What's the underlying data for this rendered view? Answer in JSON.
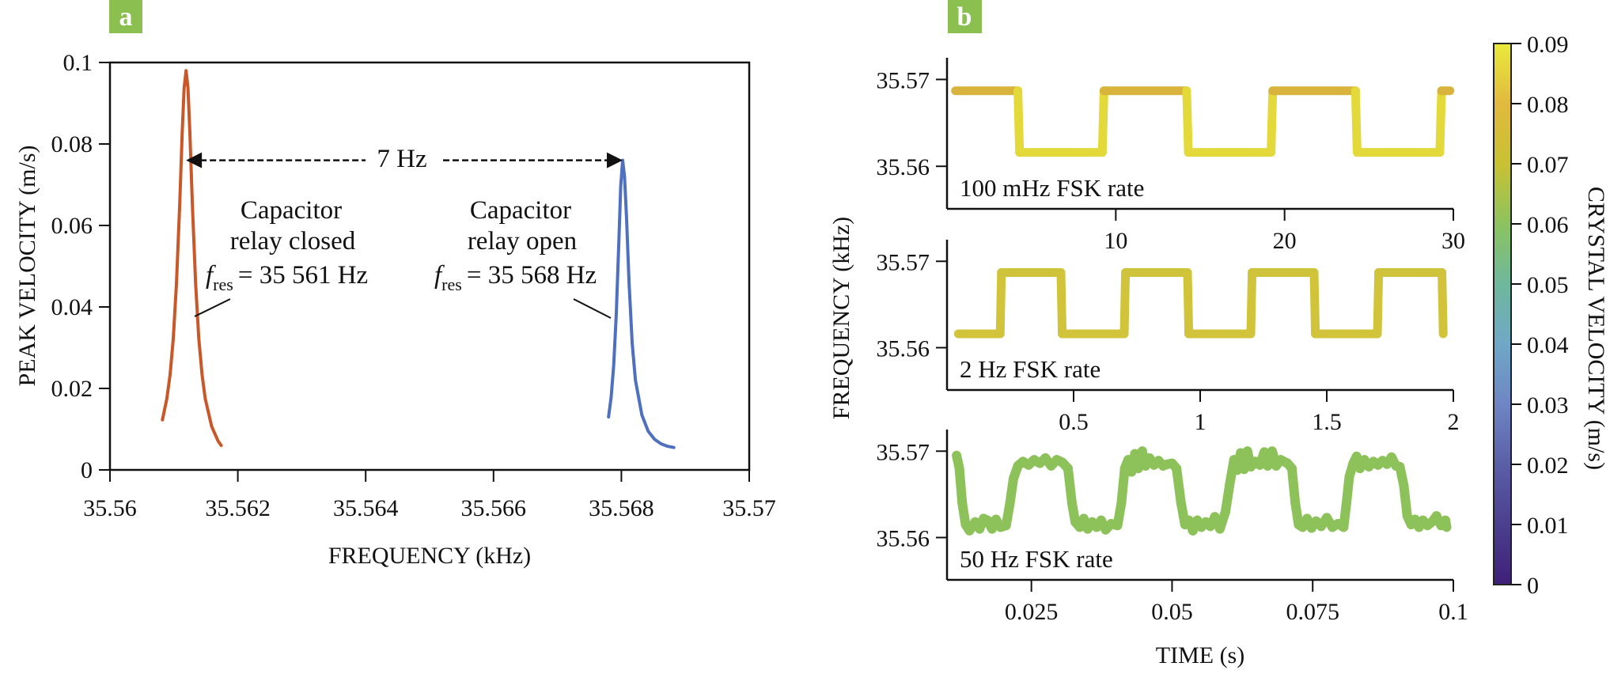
{
  "chart_data": [
    {
      "panel": "a",
      "type": "line",
      "title": "",
      "xlabel": "FREQUENCY (kHz)",
      "ylabel": "PEAK VELOCITY (m/s)",
      "xlim": [
        35.56,
        35.57
      ],
      "ylim": [
        0,
        0.1
      ],
      "grid": false,
      "xticks": [
        35.56,
        35.562,
        35.564,
        35.566,
        35.568,
        35.57
      ],
      "xtick_labels": [
        "35.56",
        "35.562",
        "35.564",
        "35.566",
        "35.568",
        "35.57"
      ],
      "yticks": [
        0,
        0.02,
        0.04,
        0.06,
        0.08,
        0.1
      ],
      "ytick_labels": [
        "0",
        "0.02",
        "0.04",
        "0.06",
        "0.08",
        "0.1"
      ],
      "series": [
        {
          "name": "Capacitor relay closed",
          "color": "#c8582a",
          "points": [
            [
              35.56082,
              0.0123
            ],
            [
              35.56089,
              0.0175
            ],
            [
              35.56094,
              0.0234
            ],
            [
              35.56099,
              0.0322
            ],
            [
              35.56104,
              0.0456
            ],
            [
              35.56109,
              0.0649
            ],
            [
              35.56113,
              0.0828
            ],
            [
              35.56116,
              0.0937
            ],
            [
              35.56119,
              0.098
            ],
            [
              35.56122,
              0.0937
            ],
            [
              35.56125,
              0.0828
            ],
            [
              35.56129,
              0.0649
            ],
            [
              35.56134,
              0.0456
            ],
            [
              35.56139,
              0.0322
            ],
            [
              35.56144,
              0.0234
            ],
            [
              35.56149,
              0.0175
            ],
            [
              35.56159,
              0.0107
            ],
            [
              35.56169,
              0.0071
            ],
            [
              35.56174,
              0.006
            ]
          ]
        },
        {
          "name": "Capacitor relay open",
          "color": "#4f6fbf",
          "points": [
            [
              35.5678,
              0.013
            ],
            [
              35.56784,
              0.0179
            ],
            [
              35.56788,
              0.0257
            ],
            [
              35.56792,
              0.038
            ],
            [
              35.56796,
              0.0559
            ],
            [
              35.56799,
              0.0697
            ],
            [
              35.56802,
              0.076
            ],
            [
              35.56805,
              0.072
            ],
            [
              35.56808,
              0.062
            ],
            [
              35.56812,
              0.046
            ],
            [
              35.56817,
              0.031
            ],
            [
              35.56822,
              0.022
            ],
            [
              35.56832,
              0.0135
            ],
            [
              35.56842,
              0.0095
            ],
            [
              35.56852,
              0.0075
            ],
            [
              35.56862,
              0.0064
            ],
            [
              35.56872,
              0.0058
            ],
            [
              35.56882,
              0.0055
            ]
          ]
        }
      ],
      "annotations": {
        "separation": {
          "label": "7 Hz",
          "from": 35.56119,
          "to": 35.56802,
          "y": 0.076
        },
        "closed": {
          "lines": [
            "Capacitor",
            "relay closed"
          ],
          "symbol": "f",
          "subscript": "res",
          "value": "= 35 561 Hz"
        },
        "open": {
          "lines": [
            "Capacitor",
            "relay open"
          ],
          "symbol": "f",
          "subscript": "res",
          "value": "= 35 568 Hz"
        }
      }
    },
    {
      "panel": "b",
      "type": "line",
      "xlabel": "TIME (s)",
      "ylabel": "FREQUENCY (kHz)",
      "subplots": [
        {
          "label": "100 mHz FSK rate",
          "xlim": [
            0,
            30
          ],
          "ylim": [
            35.5551,
            35.5725
          ],
          "xticks": [
            10,
            20,
            30
          ],
          "xtick_labels": [
            "10",
            "20",
            "30"
          ],
          "yticks": [
            35.56,
            35.57
          ],
          "ytick_labels": [
            "35.56",
            "35.57"
          ],
          "colors": {
            "high": "#d9b43d",
            "low": "#e3d93a"
          },
          "points": [
            [
              0.5,
              35.5687
            ],
            [
              4.2,
              35.5687
            ],
            [
              4.3,
              35.5616
            ],
            [
              9.2,
              35.5616
            ],
            [
              9.3,
              35.5687
            ],
            [
              14.2,
              35.5687
            ],
            [
              14.3,
              35.5616
            ],
            [
              19.2,
              35.5616
            ],
            [
              19.3,
              35.5687
            ],
            [
              24.2,
              35.5687
            ],
            [
              24.3,
              35.5616
            ],
            [
              29.2,
              35.5616
            ],
            [
              29.3,
              35.5687
            ],
            [
              29.8,
              35.5687
            ]
          ]
        },
        {
          "label": "2 Hz FSK rate",
          "xlim": [
            0,
            2
          ],
          "ylim": [
            35.5551,
            35.5725
          ],
          "xticks": [
            0.5,
            1,
            1.5,
            2
          ],
          "xtick_labels": [
            "0.5",
            "1",
            "1.5",
            "2"
          ],
          "yticks": [
            35.56,
            35.57
          ],
          "ytick_labels": [
            "35.56",
            "35.57"
          ],
          "colors": {
            "high": "#cec33a",
            "low": "#d1c43a"
          },
          "points": [
            [
              0.045,
              35.5616
            ],
            [
              0.21,
              35.5616
            ],
            [
              0.215,
              35.5687
            ],
            [
              0.45,
              35.5687
            ],
            [
              0.455,
              35.5616
            ],
            [
              0.7,
              35.5616
            ],
            [
              0.705,
              35.5687
            ],
            [
              0.95,
              35.5687
            ],
            [
              0.955,
              35.5616
            ],
            [
              1.2,
              35.5616
            ],
            [
              1.205,
              35.5687
            ],
            [
              1.45,
              35.5687
            ],
            [
              1.455,
              35.5616
            ],
            [
              1.7,
              35.5616
            ],
            [
              1.705,
              35.5687
            ],
            [
              1.955,
              35.5687
            ],
            [
              1.96,
              35.5616
            ]
          ]
        },
        {
          "label": "50 Hz FSK rate",
          "xlim": [
            0.01,
            0.1
          ],
          "ylim": [
            35.5551,
            35.5725
          ],
          "xticks": [
            0.025,
            0.05,
            0.075,
            0.1
          ],
          "xtick_labels": [
            "0.025",
            "0.05",
            "0.075",
            "0.1"
          ],
          "yticks": [
            35.56,
            35.57
          ],
          "ytick_labels": [
            "35.56",
            "35.57"
          ],
          "colors": {
            "high": "#8dc25a",
            "low": "#8dc25a"
          },
          "points": [
            [
              0.0117,
              35.5695
            ],
            [
              0.0122,
              35.568
            ],
            [
              0.0127,
              35.564
            ],
            [
              0.0133,
              35.5615
            ],
            [
              0.014,
              35.5608
            ],
            [
              0.015,
              35.5618
            ],
            [
              0.0158,
              35.561
            ],
            [
              0.0165,
              35.5622
            ],
            [
              0.0172,
              35.562
            ],
            [
              0.018,
              35.561
            ],
            [
              0.0187,
              35.5621
            ],
            [
              0.0195,
              35.5612
            ],
            [
              0.0205,
              35.5614
            ],
            [
              0.0212,
              35.564
            ],
            [
              0.0218,
              35.5668
            ],
            [
              0.0226,
              35.5683
            ],
            [
              0.0235,
              35.5688
            ],
            [
              0.0245,
              35.5684
            ],
            [
              0.0255,
              35.569
            ],
            [
              0.0265,
              35.5686
            ],
            [
              0.0275,
              35.5692
            ],
            [
              0.0285,
              35.5683
            ],
            [
              0.0295,
              35.569
            ],
            [
              0.0305,
              35.5687
            ],
            [
              0.0315,
              35.568
            ],
            [
              0.0322,
              35.564
            ],
            [
              0.0328,
              35.5618
            ],
            [
              0.0336,
              35.5612
            ],
            [
              0.0343,
              35.5622
            ],
            [
              0.035,
              35.561
            ],
            [
              0.0358,
              35.5618
            ],
            [
              0.0366,
              35.5612
            ],
            [
              0.0374,
              35.562
            ],
            [
              0.0382,
              35.5609
            ],
            [
              0.0392,
              35.5616
            ],
            [
              0.0403,
              35.5614
            ],
            [
              0.041,
              35.564
            ],
            [
              0.0416,
              35.568
            ],
            [
              0.0422,
              35.569
            ],
            [
              0.0428,
              35.5676
            ],
            [
              0.0434,
              35.5697
            ],
            [
              0.044,
              35.568
            ],
            [
              0.0447,
              35.57
            ],
            [
              0.0453,
              35.5683
            ],
            [
              0.046,
              35.5692
            ],
            [
              0.0468,
              35.5684
            ],
            [
              0.0476,
              35.5689
            ],
            [
              0.0484,
              35.5683
            ],
            [
              0.0492,
              35.5685
            ],
            [
              0.05,
              35.5686
            ],
            [
              0.0508,
              35.568
            ],
            [
              0.0516,
              35.564
            ],
            [
              0.0523,
              35.5615
            ],
            [
              0.053,
              35.562
            ],
            [
              0.0537,
              35.5608
            ],
            [
              0.0545,
              35.562
            ],
            [
              0.0552,
              35.5612
            ],
            [
              0.056,
              35.5618
            ],
            [
              0.0568,
              35.5613
            ],
            [
              0.0576,
              35.5624
            ],
            [
              0.0585,
              35.561
            ],
            [
              0.0595,
              35.563
            ],
            [
              0.0602,
              35.566
            ],
            [
              0.061,
              35.569
            ],
            [
              0.0616,
              35.5678
            ],
            [
              0.0622,
              35.5698
            ],
            [
              0.0628,
              35.5679
            ],
            [
              0.0634,
              35.57
            ],
            [
              0.064,
              35.5682
            ],
            [
              0.0648,
              35.5688
            ],
            [
              0.0656,
              35.5684
            ],
            [
              0.0664,
              35.5699
            ],
            [
              0.067,
              35.5683
            ],
            [
              0.0678,
              35.57
            ],
            [
              0.0685,
              35.5683
            ],
            [
              0.0693,
              35.569
            ],
            [
              0.0705,
              35.5686
            ],
            [
              0.0713,
              35.568
            ],
            [
              0.0719,
              35.564
            ],
            [
              0.0725,
              35.5615
            ],
            [
              0.0732,
              35.5612
            ],
            [
              0.074,
              35.5622
            ],
            [
              0.0748,
              35.5611
            ],
            [
              0.0756,
              35.5619
            ],
            [
              0.0765,
              35.5613
            ],
            [
              0.0775,
              35.5623
            ],
            [
              0.0785,
              35.5612
            ],
            [
              0.0795,
              35.5616
            ],
            [
              0.0805,
              35.5612
            ],
            [
              0.081,
              35.564
            ],
            [
              0.0815,
              35.567
            ],
            [
              0.0822,
              35.5686
            ],
            [
              0.0828,
              35.5694
            ],
            [
              0.0834,
              35.568
            ],
            [
              0.0842,
              35.569
            ],
            [
              0.085,
              35.5682
            ],
            [
              0.0858,
              35.5688
            ],
            [
              0.0866,
              35.5684
            ],
            [
              0.0874,
              35.5689
            ],
            [
              0.0882,
              35.5685
            ],
            [
              0.089,
              35.5693
            ],
            [
              0.0898,
              35.5683
            ],
            [
              0.0905,
              35.5682
            ],
            [
              0.0912,
              35.566
            ],
            [
              0.0918,
              35.5625
            ],
            [
              0.0925,
              35.5615
            ],
            [
              0.0932,
              35.5621
            ],
            [
              0.0939,
              35.5612
            ],
            [
              0.0946,
              35.562
            ],
            [
              0.0954,
              35.5614
            ],
            [
              0.0962,
              35.5618
            ],
            [
              0.097,
              35.5625
            ],
            [
              0.0978,
              35.5614
            ],
            [
              0.0986,
              35.562
            ],
            [
              0.0988,
              35.5612
            ]
          ]
        }
      ],
      "colorbar": {
        "label": "CRYSTAL VELOCITY (m/s)",
        "range": [
          0,
          0.09
        ],
        "ticks": [
          0,
          0.01,
          0.02,
          0.03,
          0.04,
          0.05,
          0.06,
          0.07,
          0.08,
          0.09
        ],
        "tick_labels": [
          "0",
          "0.01",
          "0.02",
          "0.03",
          "0.04",
          "0.05",
          "0.06",
          "0.07",
          "0.08",
          "0.09"
        ],
        "colormap": [
          "#3e1f78",
          "#4b3f8e",
          "#5a5fa6",
          "#6e86c4",
          "#6fa8c6",
          "#6eb89c",
          "#8cc35f",
          "#c9c132",
          "#e1b93e",
          "#e9ea3b"
        ]
      }
    }
  ],
  "panel_labels": {
    "a": "a",
    "b": "b",
    "color": "#8bbf4f"
  }
}
